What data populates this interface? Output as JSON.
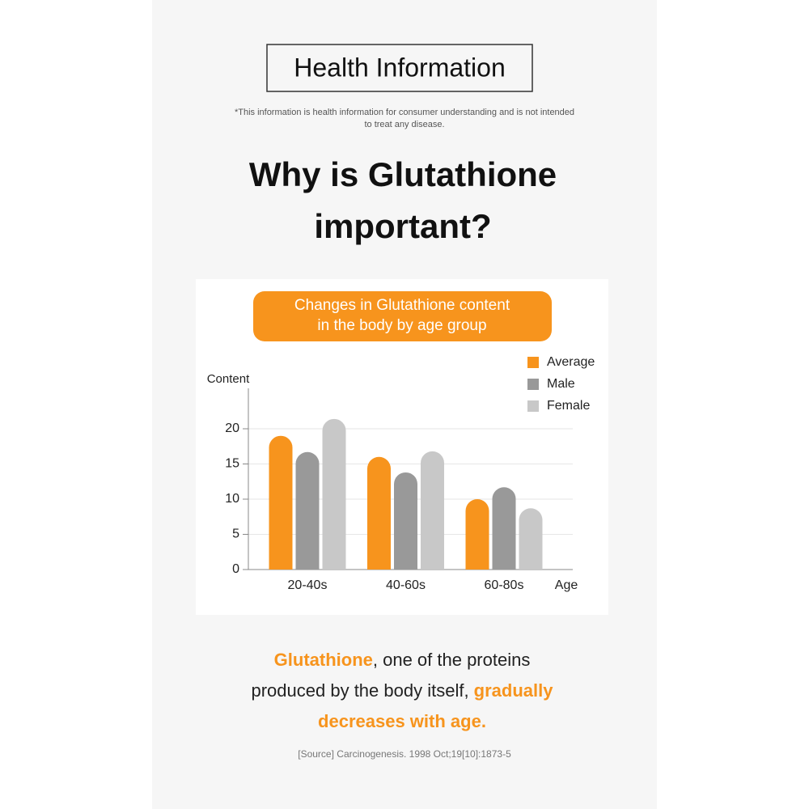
{
  "header": {
    "title": "Health Information",
    "disclaimer": [
      "*This information is health information for consumer understanding and is not intended",
      "to treat any disease."
    ]
  },
  "headline": [
    "Why is Glutathione",
    "important?"
  ],
  "chart_data": {
    "type": "bar",
    "title": [
      "Changes in Glutathione content",
      "in the body by age group"
    ],
    "y_label": "Content",
    "x_label": "Age",
    "categories": [
      "20-40s",
      "40-60s",
      "60-80s"
    ],
    "series": [
      {
        "name": "Average",
        "color": "#f7941d",
        "values": [
          19,
          16,
          10
        ]
      },
      {
        "name": "Male",
        "color": "#999999",
        "values": [
          16.7,
          13.8,
          11.7
        ]
      },
      {
        "name": "Female",
        "color": "#c8c8c8",
        "values": [
          21.4,
          16.8,
          8.7
        ]
      }
    ],
    "ylim": [
      0,
      25
    ],
    "yticks": [
      0,
      5,
      10,
      15,
      20
    ],
    "grid": true,
    "legend": "top-right"
  },
  "caption": {
    "lines": [
      [
        {
          "text": "Glutathione",
          "color": "#f7941d"
        },
        {
          "text": ", one of the proteins",
          "color": "#222222"
        }
      ],
      [
        {
          "text": "produced by the body itself, ",
          "color": "#222222"
        },
        {
          "text": "gradually",
          "color": "#f7941d"
        }
      ],
      [
        {
          "text": "decreases with age.",
          "color": "#f7941d"
        }
      ]
    ],
    "source": "[Source] Carcinogenesis. 1998 Oct;19[10]:1873-5"
  }
}
